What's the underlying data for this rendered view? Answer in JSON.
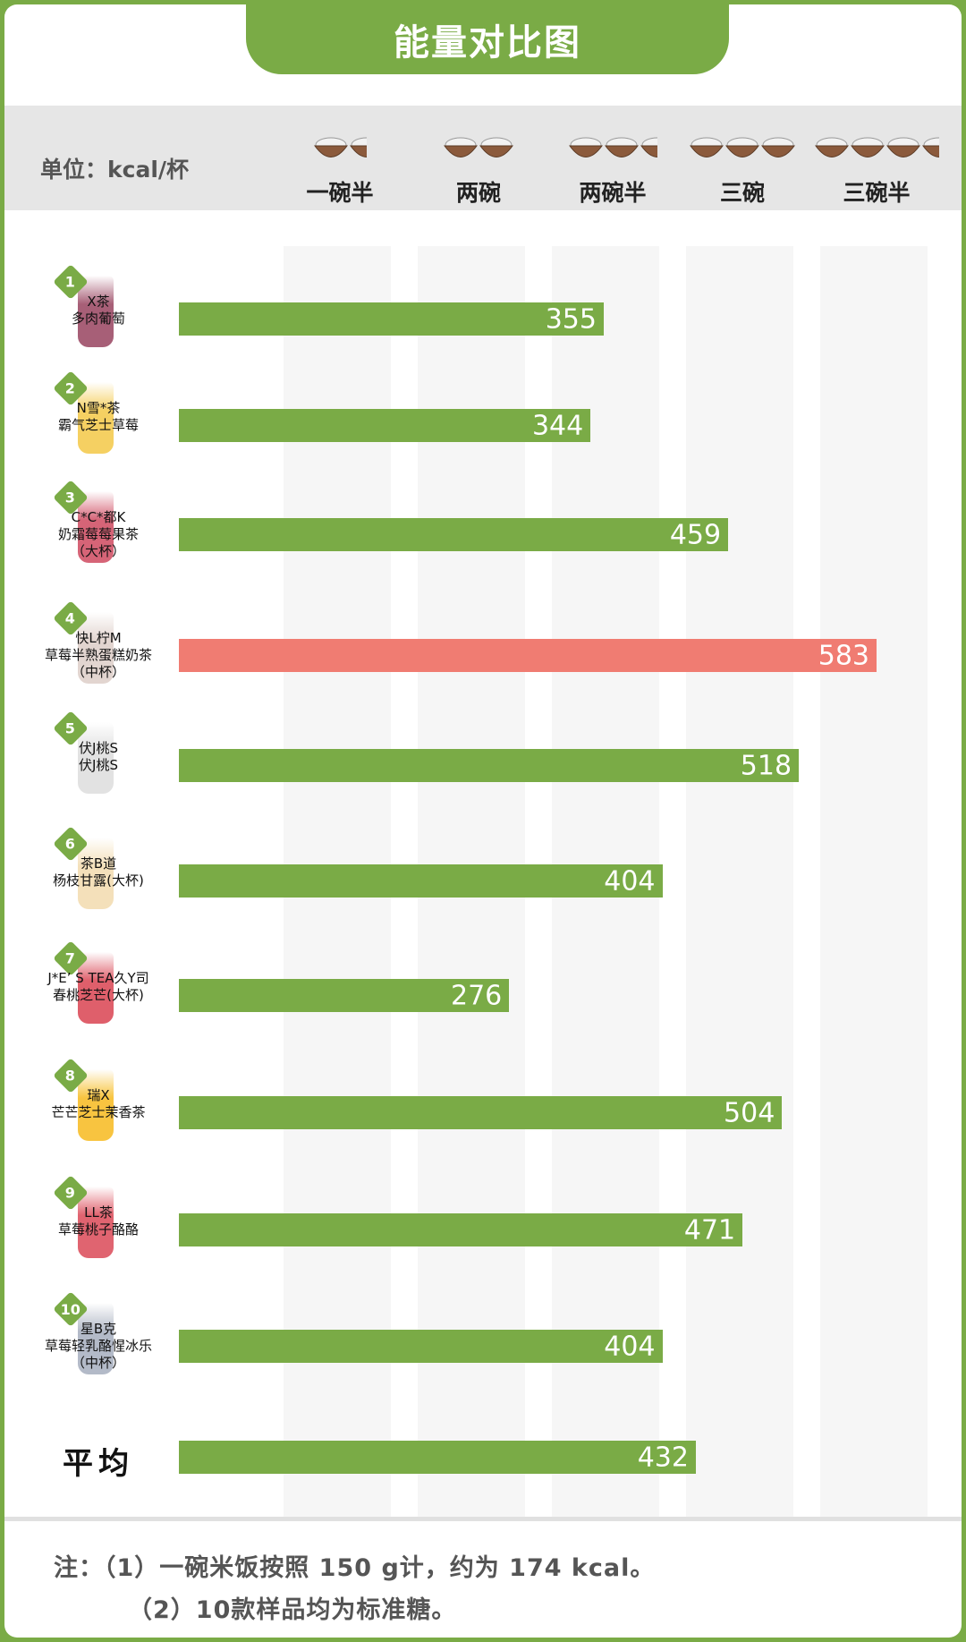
{
  "title": "能量对比图",
  "unit": "单位：kcal/杯",
  "bowl_markers": [
    {
      "label": "一碗半",
      "bowls": 1.5
    },
    {
      "label": "两碗",
      "bowls": 2
    },
    {
      "label": "两碗半",
      "bowls": 2.5
    },
    {
      "label": "三碗",
      "bowls": 3
    },
    {
      "label": "三碗半",
      "bowls": 3.5
    }
  ],
  "colors": {
    "bar": "#7aab46",
    "highlight": "#f07c72",
    "drinks": [
      "#8a2a4a",
      "#f2c12e",
      "#c8314a",
      "#d9c7c0",
      "#d8d8d8",
      "#f0d6a3",
      "#d42a3a",
      "#f5b100",
      "#d63040",
      "#9aa3b5"
    ]
  },
  "chart_data": {
    "type": "bar",
    "orientation": "horizontal",
    "title": "能量对比图",
    "xlabel": "kcal/杯",
    "categories": [
      {
        "rank": "1",
        "brand": "X茶",
        "name": "多肉葡萄",
        "size": ""
      },
      {
        "rank": "2",
        "brand": "N雪*茶",
        "name": "霸气芝士草莓",
        "size": ""
      },
      {
        "rank": "3",
        "brand": "C*C*都K",
        "name": "奶霜莓莓果茶",
        "size": "（大杯）"
      },
      {
        "rank": "4",
        "brand": "快L柠M",
        "name": "草莓半熟蛋糕奶茶",
        "size": "（中杯）"
      },
      {
        "rank": "5",
        "brand": "伏J桃S",
        "name": "伏J桃S",
        "size": ""
      },
      {
        "rank": "6",
        "brand": "茶B道",
        "name": "杨枝甘露(大杯)",
        "size": ""
      },
      {
        "rank": "7",
        "brand": "J*E’ S TEA久Y司",
        "name": "春桃芝芒(大杯)",
        "size": ""
      },
      {
        "rank": "8",
        "brand": "瑞X",
        "name": "芒芒芝士茉香茶",
        "size": ""
      },
      {
        "rank": "9",
        "brand": "LL茶",
        "name": "草莓桃子酪酪",
        "size": ""
      },
      {
        "rank": "10",
        "brand": "星B克",
        "name": "草莓轻乳酪惺冰乐",
        "size": "（中杯）"
      }
    ],
    "values": [
      355,
      344,
      459,
      583,
      518,
      404,
      276,
      504,
      471,
      404
    ],
    "highlight_index": 3,
    "average": {
      "label": "平均",
      "value": 432
    },
    "xlim": [
      0,
      600
    ]
  },
  "notes": {
    "prefix": "注：",
    "line1": "（1）一碗米饭按照 150 g计，约为 174 kcal。",
    "line2": "（2）10款样品均为标准糖。"
  }
}
